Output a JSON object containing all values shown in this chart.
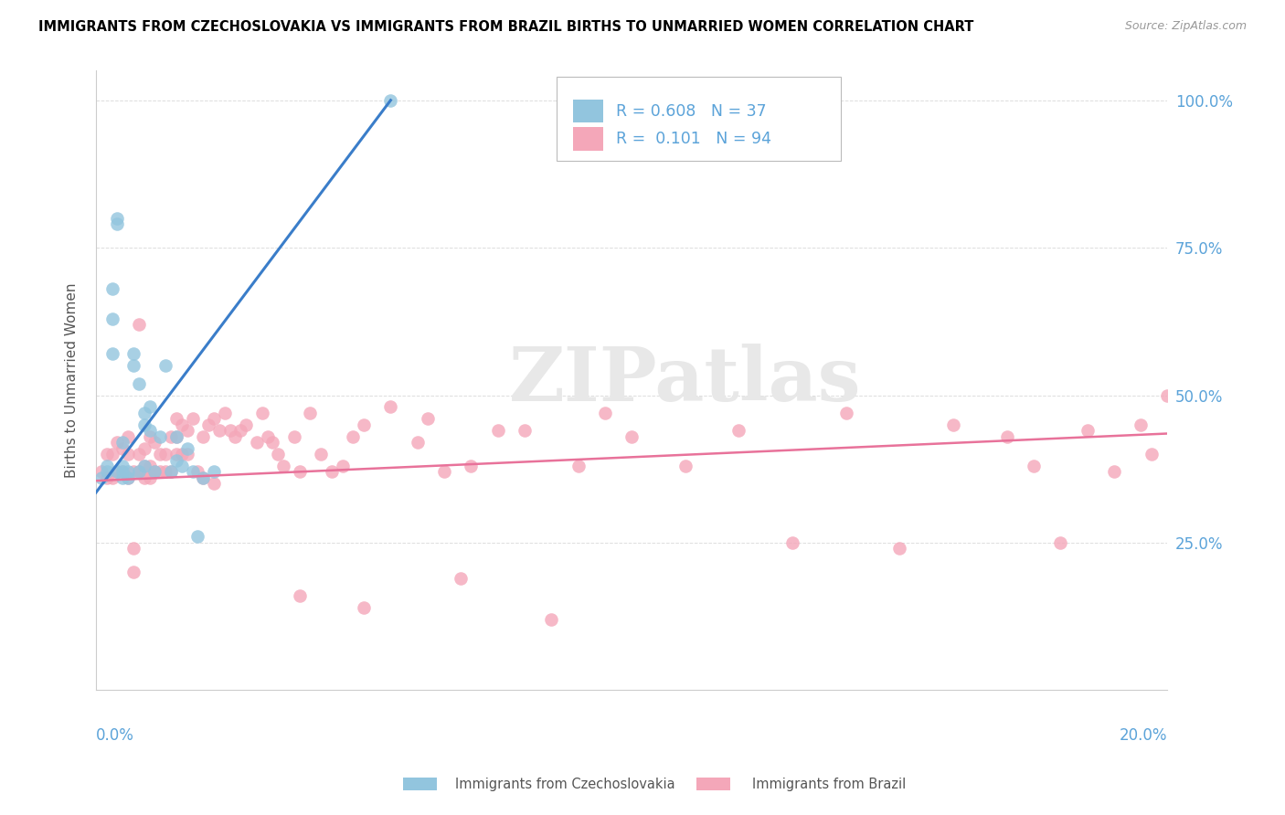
{
  "title": "IMMIGRANTS FROM CZECHOSLOVAKIA VS IMMIGRANTS FROM BRAZIL BIRTHS TO UNMARRIED WOMEN CORRELATION CHART",
  "source": "Source: ZipAtlas.com",
  "ylabel": "Births to Unmarried Women",
  "xlim": [
    0.0,
    0.2
  ],
  "ylim": [
    0.0,
    1.05
  ],
  "ytick_vals": [
    0.25,
    0.5,
    0.75,
    1.0
  ],
  "ytick_labels": [
    "25.0%",
    "50.0%",
    "75.0%",
    "100.0%"
  ],
  "xtick_vals": [
    0.0,
    0.05,
    0.1,
    0.15,
    0.2
  ],
  "legend_blue_r": "0.608",
  "legend_blue_n": "37",
  "legend_pink_r": "0.101",
  "legend_pink_n": "94",
  "legend_label_blue": "Immigrants from Czechoslovakia",
  "legend_label_pink": "Immigrants from Brazil",
  "watermark": "ZIPatlas",
  "blue_color": "#92C5DE",
  "pink_color": "#F4A7B9",
  "blue_line_color": "#3A7DC9",
  "pink_line_color": "#E8729A",
  "blue_scatter_x": [
    0.001,
    0.002,
    0.002,
    0.003,
    0.003,
    0.003,
    0.004,
    0.004,
    0.004,
    0.005,
    0.005,
    0.005,
    0.005,
    0.006,
    0.006,
    0.007,
    0.007,
    0.008,
    0.008,
    0.009,
    0.009,
    0.009,
    0.01,
    0.01,
    0.011,
    0.012,
    0.013,
    0.014,
    0.015,
    0.015,
    0.016,
    0.017,
    0.018,
    0.019,
    0.02,
    0.022,
    0.055
  ],
  "blue_scatter_y": [
    0.36,
    0.37,
    0.38,
    0.68,
    0.63,
    0.57,
    0.8,
    0.79,
    0.37,
    0.36,
    0.37,
    0.38,
    0.42,
    0.36,
    0.37,
    0.57,
    0.55,
    0.52,
    0.37,
    0.38,
    0.45,
    0.47,
    0.48,
    0.44,
    0.37,
    0.43,
    0.55,
    0.37,
    0.39,
    0.43,
    0.38,
    0.41,
    0.37,
    0.26,
    0.36,
    0.37,
    1.0
  ],
  "pink_scatter_x": [
    0.001,
    0.002,
    0.002,
    0.003,
    0.003,
    0.004,
    0.004,
    0.005,
    0.005,
    0.006,
    0.006,
    0.006,
    0.007,
    0.007,
    0.007,
    0.008,
    0.008,
    0.008,
    0.009,
    0.009,
    0.009,
    0.01,
    0.01,
    0.01,
    0.011,
    0.011,
    0.012,
    0.012,
    0.013,
    0.013,
    0.014,
    0.014,
    0.015,
    0.015,
    0.015,
    0.016,
    0.016,
    0.017,
    0.017,
    0.018,
    0.019,
    0.02,
    0.021,
    0.022,
    0.023,
    0.024,
    0.025,
    0.026,
    0.027,
    0.028,
    0.03,
    0.031,
    0.032,
    0.033,
    0.034,
    0.035,
    0.037,
    0.038,
    0.04,
    0.042,
    0.044,
    0.046,
    0.048,
    0.05,
    0.055,
    0.06,
    0.062,
    0.065,
    0.068,
    0.07,
    0.075,
    0.08,
    0.085,
    0.09,
    0.095,
    0.1,
    0.11,
    0.12,
    0.13,
    0.14,
    0.15,
    0.16,
    0.17,
    0.175,
    0.18,
    0.185,
    0.19,
    0.195,
    0.197,
    0.2,
    0.02,
    0.022,
    0.038,
    0.05
  ],
  "pink_scatter_y": [
    0.37,
    0.36,
    0.4,
    0.36,
    0.4,
    0.37,
    0.42,
    0.37,
    0.41,
    0.36,
    0.4,
    0.43,
    0.2,
    0.24,
    0.37,
    0.37,
    0.4,
    0.62,
    0.36,
    0.38,
    0.41,
    0.36,
    0.38,
    0.43,
    0.37,
    0.42,
    0.37,
    0.4,
    0.37,
    0.4,
    0.37,
    0.43,
    0.4,
    0.43,
    0.46,
    0.4,
    0.45,
    0.4,
    0.44,
    0.46,
    0.37,
    0.43,
    0.45,
    0.46,
    0.44,
    0.47,
    0.44,
    0.43,
    0.44,
    0.45,
    0.42,
    0.47,
    0.43,
    0.42,
    0.4,
    0.38,
    0.43,
    0.37,
    0.47,
    0.4,
    0.37,
    0.38,
    0.43,
    0.45,
    0.48,
    0.42,
    0.46,
    0.37,
    0.19,
    0.38,
    0.44,
    0.44,
    0.12,
    0.38,
    0.47,
    0.43,
    0.38,
    0.44,
    0.25,
    0.47,
    0.24,
    0.45,
    0.43,
    0.38,
    0.25,
    0.44,
    0.37,
    0.45,
    0.4,
    0.5,
    0.36,
    0.35,
    0.16,
    0.14
  ]
}
